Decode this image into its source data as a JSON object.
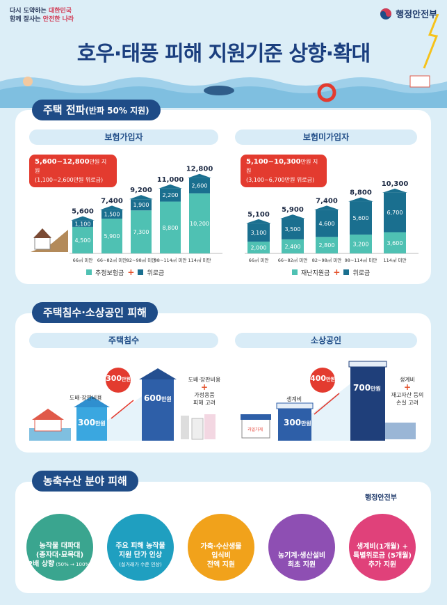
{
  "header": {
    "slogan_line1_a": "다시 도약하는 ",
    "slogan_line1_b": "대한민국",
    "slogan_line2_a": "함께 잘사는 ",
    "slogan_line2_b": "안전한 나라",
    "ministry": "행정안전부",
    "title": "호우·태풍 피해 지원기준 상향·확대"
  },
  "section1": {
    "label": "주택 전파",
    "label_sub": "(반파 50% 지원)",
    "insured": {
      "header": "보험가입자",
      "box_main": "5,600~12,800",
      "box_unit": "만원 지원",
      "box_sub": "(1,100~2,600만원 위로금)",
      "legend_a": "추정보험금",
      "legend_plus": "+",
      "legend_b": "위로금"
    },
    "uninsured": {
      "header": "보험미가입자",
      "box_main": "5,100~10,300",
      "box_unit": "만원 지원",
      "box_sub": "(3,100~6,700만원 위로금)",
      "legend_a": "재난지원금",
      "legend_plus": "+",
      "legend_b": "위로금"
    }
  },
  "chart_data": [
    {
      "type": "bar",
      "title": "보험가입자",
      "stacked": true,
      "categories": [
        "66㎡ 미만",
        "66~82㎡ 미만",
        "82~98㎡ 미만",
        "98~114㎡ 미만",
        "114㎡ 미만"
      ],
      "series": [
        {
          "name": "추정보험금",
          "values": [
            4500,
            5900,
            7300,
            8800,
            10200
          ]
        },
        {
          "name": "위로금",
          "values": [
            1100,
            1500,
            1900,
            2200,
            2600
          ]
        }
      ],
      "totals": [
        "5,600",
        "7,400",
        "9,200",
        "11,000",
        "12,800"
      ],
      "ylim": [
        0,
        13000
      ],
      "colors": {
        "base": "#4fc1b3",
        "top": "#1a6f8f"
      }
    },
    {
      "type": "bar",
      "title": "보험미가입자",
      "stacked": true,
      "categories": [
        "66㎡ 미만",
        "66~82㎡ 미만",
        "82~98㎡ 미만",
        "98~114㎡ 미만",
        "114㎡ 미만"
      ],
      "series": [
        {
          "name": "재난지원금",
          "values": [
            2000,
            2400,
            2800,
            3200,
            3600
          ]
        },
        {
          "name": "위로금",
          "values": [
            3100,
            3500,
            4600,
            5600,
            6700
          ]
        }
      ],
      "totals": [
        "5,100",
        "5,900",
        "7,400",
        "8,800",
        "10,300"
      ],
      "ylim": [
        0,
        13000
      ],
      "colors": {
        "base": "#4fc1b3",
        "top": "#1a6f8f"
      }
    }
  ],
  "section2": {
    "label": "주택침수·소상공인 피해",
    "flood": {
      "header": "주택침수",
      "before_label": "도배·장판비용",
      "before_value": "300",
      "before_unit": "만원",
      "increase": "300",
      "increase_unit": "만원",
      "after_value": "600",
      "after_unit": "만원",
      "note_line1": "도배·장판비용",
      "note_plus": "+",
      "note_line2": "가정용품",
      "note_line3": "피해 고려"
    },
    "small_biz": {
      "header": "소상공인",
      "before_label": "생계비",
      "before_value": "300",
      "before_unit": "만원",
      "increase": "400",
      "increase_unit": "만원",
      "after_value": "700",
      "after_unit": "만원",
      "note_line1": "생계비",
      "note_plus": "+",
      "note_line2": "재고자산 등의",
      "note_line3": "손실 고려",
      "shop_sign": "과일가게"
    }
  },
  "section3": {
    "label": "농축수산 분야 피해",
    "items": [
      {
        "l1": "농작물 대파대",
        "l2": "(종자대·묘목대)",
        "l3a": "2배 상향",
        "l3b": " (50% → 100%)",
        "color": "#3aa58f"
      },
      {
        "l1": "주요 피해 농작물",
        "l2": "지원 단가 인상",
        "l3a": "",
        "l3b": "(실거래가 수준 인상)",
        "color": "#1f9fc0"
      },
      {
        "l1": "가축·수산생물",
        "l2": "입식비",
        "l3a": "전액 지원",
        "l3b": "",
        "color": "#f1a21b"
      },
      {
        "l1": "농기계·생산설비",
        "l2": "최초 지원",
        "l3a": "",
        "l3b": "",
        "color": "#8e4fb3"
      },
      {
        "l1": "생계비(1개월) +",
        "l2": "특별위로금 (5개월)",
        "l3a": "추가 지원",
        "l3b": "",
        "color": "#e0417a"
      }
    ],
    "tag": "행정안전부"
  }
}
